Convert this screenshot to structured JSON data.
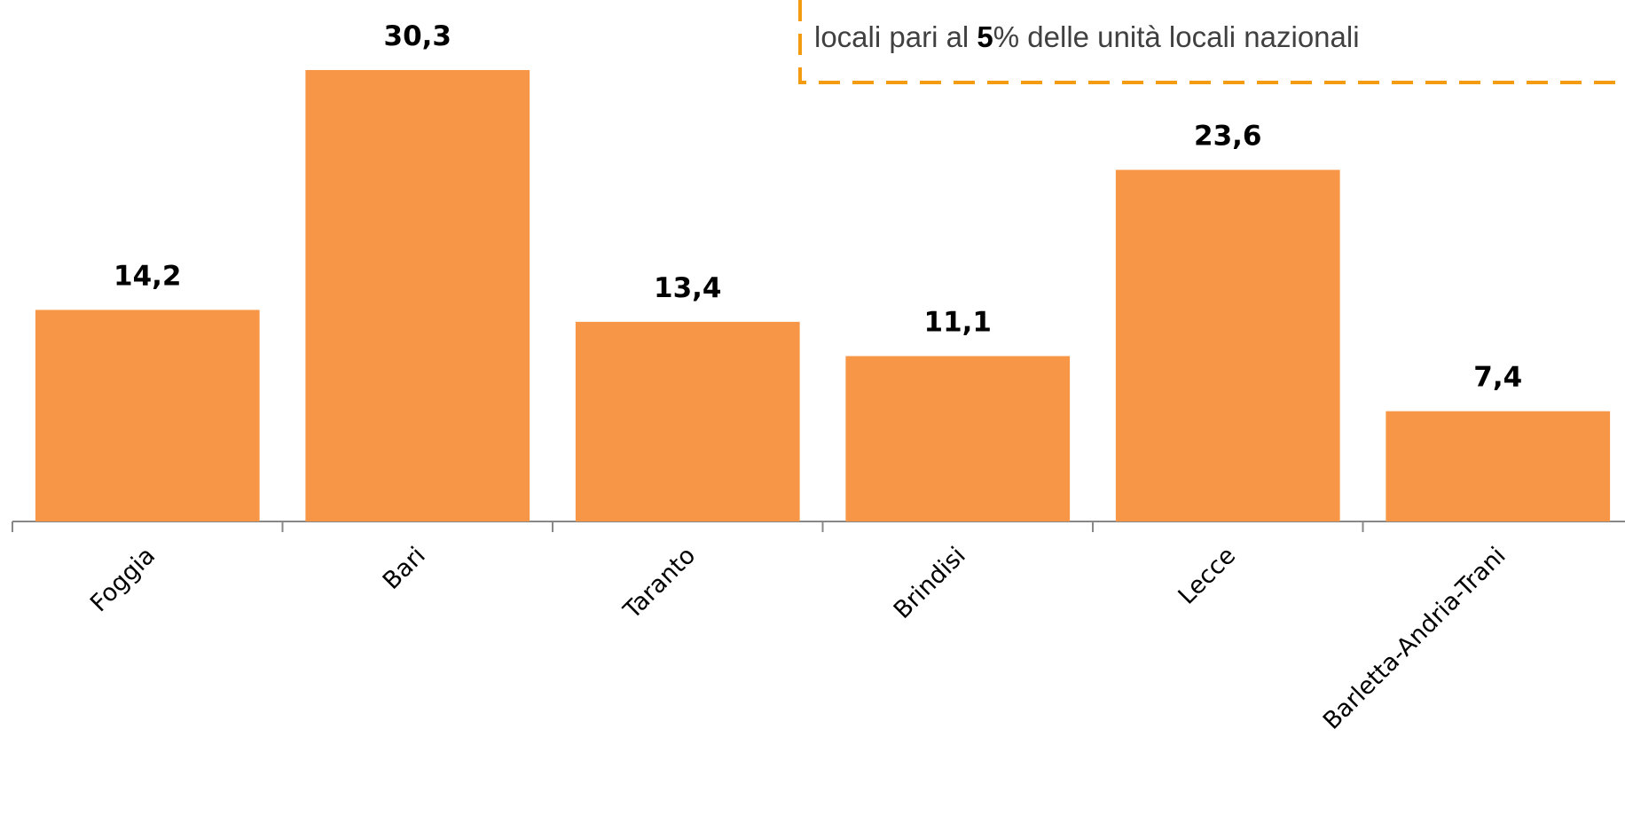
{
  "chart_data": {
    "type": "bar",
    "annotation": [
      "locali pari al ",
      "5",
      "% delle unità locali nazionali"
    ],
    "categories": [
      "Foggia",
      "Bari",
      "Taranto",
      "Brindisi",
      "Lecce",
      "Barletta-Andria-Trani"
    ],
    "values": [
      14.2,
      30.3,
      13.4,
      11.1,
      23.6,
      7.4
    ],
    "value_labels": [
      "14,2",
      "30,3",
      "13,4",
      "11,1",
      "23,6",
      "7,4"
    ],
    "color": "#f79646",
    "ylim": [
      0,
      35
    ]
  }
}
